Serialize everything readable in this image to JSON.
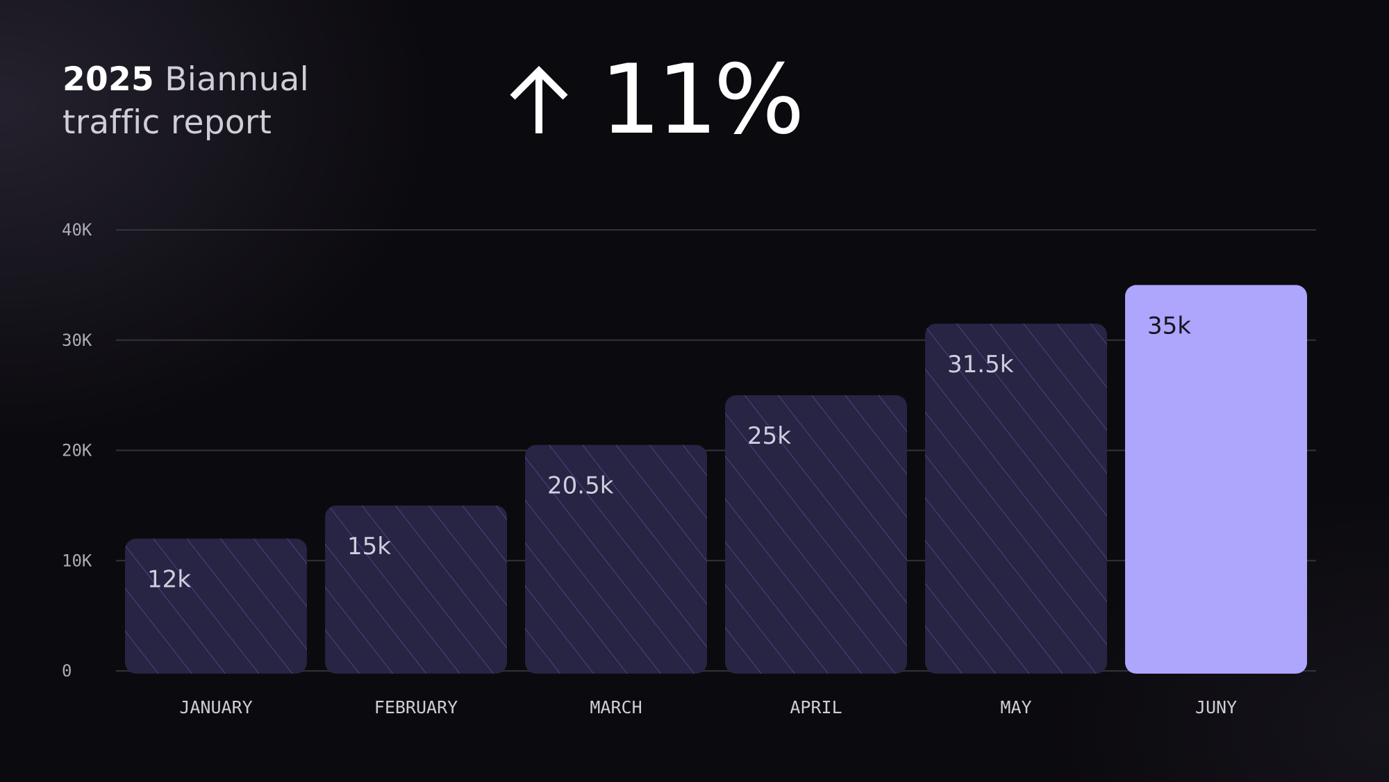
{
  "header": {
    "title_year": "2025",
    "title_rest_line1": "Biannual",
    "title_line2": "traffic report"
  },
  "kpi": {
    "icon": "arrow-up-icon",
    "value": "11%"
  },
  "colors": {
    "background": "#0b0a0e",
    "bar": "#272444",
    "bar_stripe": "#4a4585",
    "highlight_bar": "#aea5fd",
    "grid": "#34333a"
  },
  "chart_data": {
    "type": "bar",
    "title": "",
    "xlabel": "",
    "ylabel": "",
    "categories": [
      "JANUARY",
      "FEBRUARY",
      "MARCH",
      "APRIL",
      "MAY",
      "JUNY"
    ],
    "values": [
      12000,
      15000,
      20500,
      25000,
      31500,
      35000
    ],
    "data_labels": [
      "12k",
      "15k",
      "20.5k",
      "25k",
      "31.5k",
      "35k"
    ],
    "highlighted": "JUNY",
    "ylim": [
      0,
      40000
    ],
    "yticks": [
      0,
      10000,
      20000,
      30000,
      40000
    ],
    "ytick_labels": [
      "0",
      "10K",
      "20K",
      "30K",
      "40K"
    ],
    "grid": true,
    "legend": "none"
  }
}
